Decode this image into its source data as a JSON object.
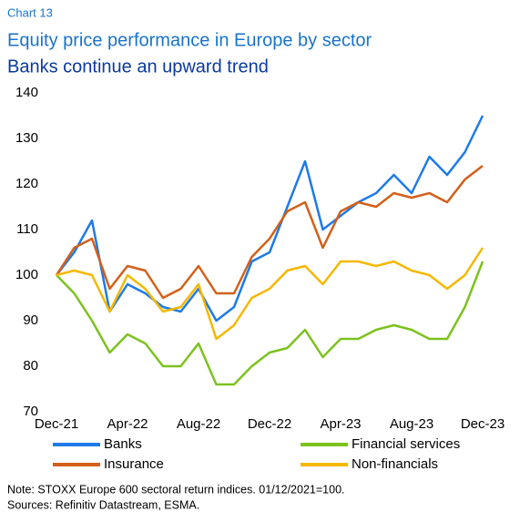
{
  "chart_data": {
    "type": "line",
    "chart_label": "Chart 13",
    "title": "Equity price performance in Europe by sector",
    "subtitle": "Banks continue an upward trend",
    "categories": [
      "Dec-21",
      null,
      null,
      null,
      "Apr-22",
      null,
      null,
      null,
      "Aug-22",
      null,
      null,
      null,
      "Dec-22",
      null,
      null,
      null,
      "Apr-23",
      null,
      null,
      null,
      "Aug-23",
      null,
      null,
      null,
      "Dec-23"
    ],
    "series": [
      {
        "name": "Banks",
        "color": "#1e7be6",
        "values": [
          100,
          105,
          112,
          92,
          98,
          96,
          93,
          92,
          97,
          90,
          93,
          103,
          105,
          115,
          125,
          110,
          113,
          116,
          118,
          122,
          118,
          126,
          122,
          127,
          135
        ]
      },
      {
        "name": "Financial services",
        "color": "#7cc21f",
        "values": [
          100,
          96,
          90,
          83,
          87,
          85,
          80,
          80,
          85,
          76,
          76,
          80,
          83,
          84,
          88,
          82,
          86,
          86,
          88,
          89,
          88,
          86,
          86,
          93,
          103
        ]
      },
      {
        "name": "Insurance",
        "color": "#d2601a",
        "values": [
          100,
          106,
          108,
          97,
          102,
          101,
          95,
          97,
          102,
          96,
          96,
          104,
          108,
          114,
          116,
          106,
          114,
          116,
          115,
          118,
          117,
          118,
          116,
          121,
          124
        ]
      },
      {
        "name": "Non-financials",
        "color": "#f5b800",
        "values": [
          100,
          101,
          100,
          92,
          100,
          97,
          92,
          93,
          98,
          86,
          89,
          95,
          97,
          101,
          102,
          98,
          103,
          103,
          102,
          103,
          101,
          100,
          97,
          100,
          106
        ]
      }
    ],
    "ylim": [
      70,
      140
    ],
    "yticks": [
      70,
      80,
      90,
      100,
      110,
      120,
      130,
      140
    ],
    "grid": false,
    "note": "Note: STOXX Europe 600 sectoral return indices. 01/12/2021=100.",
    "source": "Sources: Refinitiv Datastream, ESMA."
  }
}
